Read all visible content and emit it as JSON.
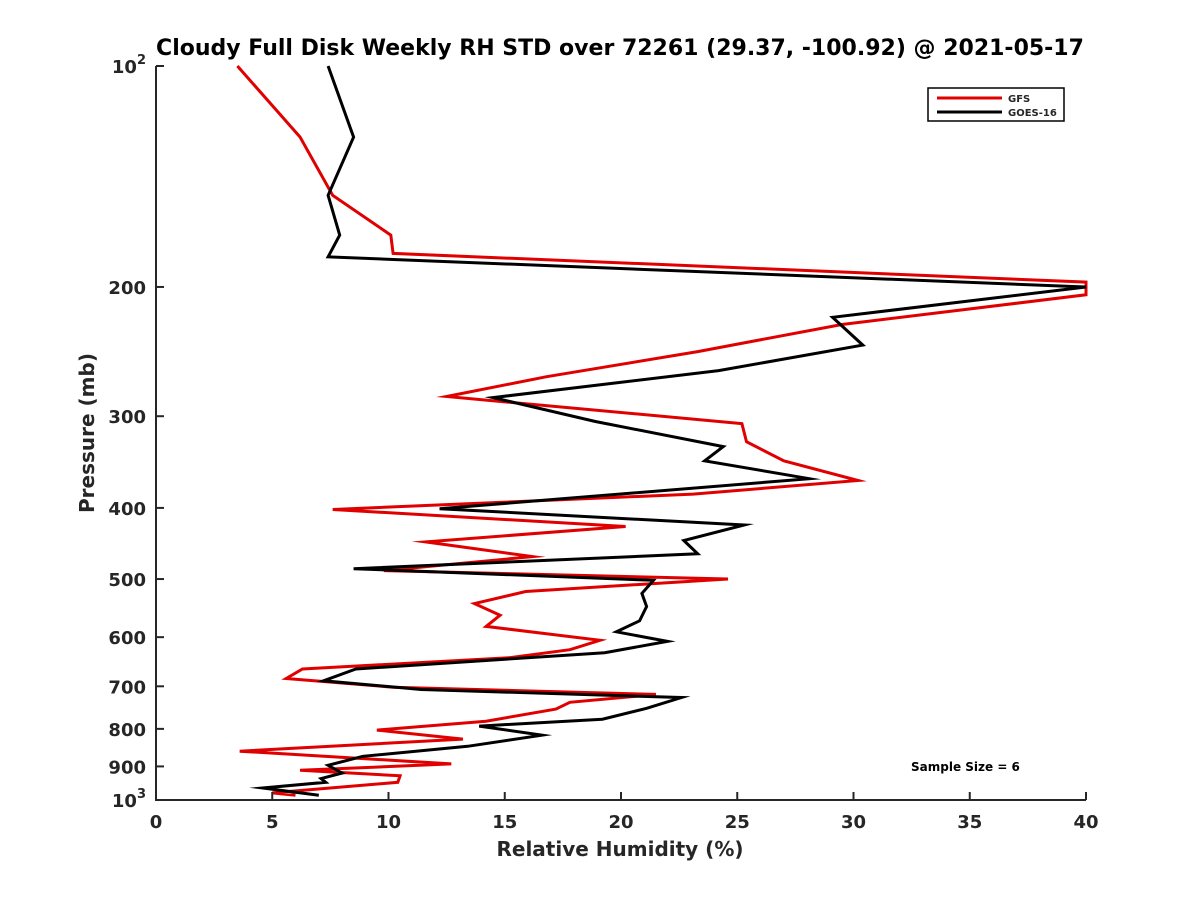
{
  "chart_data": {
    "type": "line",
    "title": "Cloudy Full Disk Weekly RH STD over 72261 (29.37, -100.92) @ 2021-05-17",
    "xlabel": "Relative Humidity (%)",
    "ylabel": "Pressure (mb)",
    "xlim": [
      0,
      40
    ],
    "ylim": [
      100,
      1000
    ],
    "y_scale": "log",
    "y_reversed": true,
    "grid": false,
    "legend_position": "top-right",
    "x_ticks": [
      "0",
      "5",
      "10",
      "15",
      "20",
      "25",
      "30",
      "35",
      "40"
    ],
    "y_ticks": [
      {
        "value": 100,
        "base": "10",
        "exp": "2"
      },
      {
        "value": 200,
        "label": "200"
      },
      {
        "value": 300,
        "label": "300"
      },
      {
        "value": 400,
        "label": "400"
      },
      {
        "value": 500,
        "label": "500"
      },
      {
        "value": 600,
        "label": "600"
      },
      {
        "value": 700,
        "label": "700"
      },
      {
        "value": 800,
        "label": "800"
      },
      {
        "value": 900,
        "label": "900"
      },
      {
        "value": 1000,
        "base": "10",
        "exp": "3"
      }
    ],
    "annotation": "Sample Size = 6",
    "series": [
      {
        "name": "GFS",
        "color": "#e00000",
        "points": [
          [
            3.5,
            100
          ],
          [
            6.2,
            125
          ],
          [
            7.6,
            150
          ],
          [
            10.1,
            170
          ],
          [
            10.2,
            180
          ],
          [
            40.0,
            197
          ],
          [
            40.0,
            205
          ],
          [
            29.5,
            225
          ],
          [
            23.3,
            245
          ],
          [
            16.8,
            265
          ],
          [
            12.5,
            282
          ],
          [
            25.2,
            307
          ],
          [
            25.4,
            325
          ],
          [
            27.0,
            345
          ],
          [
            30.2,
            367
          ],
          [
            23.1,
            383
          ],
          [
            7.6,
            402
          ],
          [
            20.2,
            424
          ],
          [
            11.6,
            445
          ],
          [
            16.2,
            466
          ],
          [
            9.8,
            487
          ],
          [
            24.6,
            500
          ],
          [
            15.9,
            520
          ],
          [
            13.7,
            540
          ],
          [
            14.8,
            560
          ],
          [
            14.2,
            580
          ],
          [
            19.1,
            606
          ],
          [
            17.8,
            624
          ],
          [
            15.2,
            640
          ],
          [
            6.3,
            663
          ],
          [
            5.6,
            683
          ],
          [
            10.2,
            702
          ],
          [
            21.5,
            718
          ],
          [
            17.8,
            736
          ],
          [
            17.2,
            752
          ],
          [
            14.2,
            781
          ],
          [
            9.5,
            803
          ],
          [
            13.2,
            826
          ],
          [
            3.6,
            858
          ],
          [
            12.7,
            893
          ],
          [
            6.2,
            911
          ],
          [
            10.5,
            927
          ],
          [
            10.4,
            946
          ],
          [
            5.0,
            978
          ],
          [
            6.0,
            985
          ]
        ]
      },
      {
        "name": "GOES-16",
        "color": "#000000",
        "points": [
          [
            7.4,
            100
          ],
          [
            8.5,
            125
          ],
          [
            7.4,
            150
          ],
          [
            7.9,
            170
          ],
          [
            7.4,
            182
          ],
          [
            40.0,
            200
          ],
          [
            29.1,
            220
          ],
          [
            30.4,
            240
          ],
          [
            24.2,
            260
          ],
          [
            14.5,
            283
          ],
          [
            18.9,
            305
          ],
          [
            24.4,
            330
          ],
          [
            23.6,
            345
          ],
          [
            28.1,
            365
          ],
          [
            12.2,
            401
          ],
          [
            25.3,
            422
          ],
          [
            22.7,
            443
          ],
          [
            23.3,
            462
          ],
          [
            8.5,
            484
          ],
          [
            21.4,
            502
          ],
          [
            20.9,
            523
          ],
          [
            21.1,
            545
          ],
          [
            20.8,
            570
          ],
          [
            19.8,
            590
          ],
          [
            22.0,
            608
          ],
          [
            19.3,
            630
          ],
          [
            8.6,
            663
          ],
          [
            7.2,
            688
          ],
          [
            11.4,
            707
          ],
          [
            22.6,
            725
          ],
          [
            21.1,
            750
          ],
          [
            19.2,
            776
          ],
          [
            13.9,
            793
          ],
          [
            16.6,
            816
          ],
          [
            13.4,
            845
          ],
          [
            8.9,
            872
          ],
          [
            7.4,
            897
          ],
          [
            8.0,
            919
          ],
          [
            7.1,
            935
          ],
          [
            7.3,
            946
          ],
          [
            4.6,
            963
          ],
          [
            7.0,
            985
          ]
        ]
      }
    ]
  }
}
